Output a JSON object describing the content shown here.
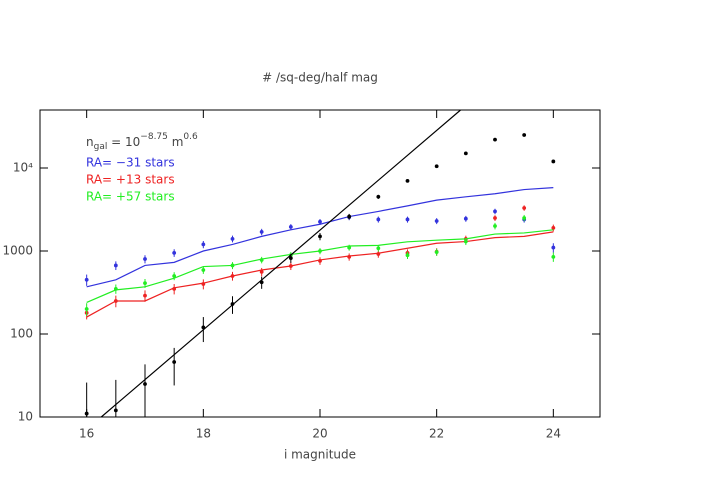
{
  "chart_data": {
    "type": "line",
    "title": "# /sq-deg/half mag",
    "x_label": "i magnitude",
    "annotation": [
      "n",
      "gal",
      " = 10",
      "−8.75",
      " m",
      "0.6"
    ],
    "xlim": [
      15.2,
      24.8
    ],
    "xticks": [
      16,
      18,
      20,
      22,
      24
    ],
    "ylim": [
      10,
      50000
    ],
    "log_y": true,
    "yticks": [
      10,
      100,
      1000,
      {
        "value": 10000,
        "label": "10⁴"
      }
    ],
    "x": [
      16,
      16.5,
      17,
      17.5,
      18,
      18.5,
      19,
      19.5,
      20,
      20.5,
      21,
      21.5,
      22,
      22.5,
      23,
      23.5,
      24
    ],
    "series": [
      {
        "name": "RA= −31 stars",
        "color": "#3333dd",
        "values": [
          370,
          450,
          670,
          730,
          1000,
          1200,
          1500,
          1800,
          2100,
          2600,
          3000,
          3500,
          4100,
          4500,
          4900,
          5500,
          5800
        ],
        "points": [
          450,
          670,
          800,
          950,
          1200,
          1400,
          1700,
          1950,
          2250,
          2550,
          2400,
          2400,
          2300,
          2450,
          3000,
          2400,
          1100
        ],
        "errors": [
          70,
          80,
          90,
          100,
          120,
          130,
          150,
          160,
          180,
          200,
          200,
          200,
          190,
          200,
          230,
          200,
          140
        ]
      },
      {
        "name": "RA= +13 stars",
        "color": "#ee2222",
        "values": [
          160,
          250,
          250,
          360,
          410,
          500,
          590,
          660,
          780,
          870,
          940,
          1080,
          1240,
          1300,
          1450,
          1500,
          1700
        ],
        "points": [
          180,
          250,
          290,
          350,
          400,
          500,
          560,
          660,
          760,
          850,
          920,
          950,
          980,
          1400,
          2500,
          3300,
          1900
        ],
        "errors": [
          30,
          40,
          45,
          50,
          55,
          60,
          65,
          70,
          80,
          85,
          90,
          95,
          100,
          130,
          200,
          250,
          180
        ]
      },
      {
        "name": "RA= +57 stars",
        "color": "#22ee22",
        "values": [
          240,
          340,
          370,
          470,
          650,
          670,
          800,
          910,
          1000,
          1150,
          1170,
          1290,
          1350,
          1400,
          1600,
          1650,
          1800
        ],
        "points": [
          200,
          350,
          410,
          500,
          590,
          670,
          780,
          890,
          1000,
          1100,
          1080,
          890,
          970,
          1300,
          2000,
          2500,
          850
        ],
        "errors": [
          35,
          45,
          50,
          55,
          60,
          65,
          70,
          80,
          85,
          90,
          95,
          90,
          95,
          120,
          180,
          220,
          110
        ]
      }
    ],
    "galaxies": {
      "color": "#000000",
      "points": [
        11,
        12,
        25,
        46,
        120,
        230,
        420,
        820,
        1500,
        2600,
        4500,
        7000,
        10500,
        15000,
        22000,
        25000,
        12000
      ],
      "errors": [
        15,
        16,
        18,
        22,
        40,
        55,
        70,
        100,
        150,
        200,
        250,
        300,
        350,
        400,
        450,
        500,
        350
      ]
    },
    "fit_line": {
      "color": "#000000",
      "x": [
        16.25,
        22.41
      ],
      "values": [
        10,
        50000
      ]
    }
  }
}
